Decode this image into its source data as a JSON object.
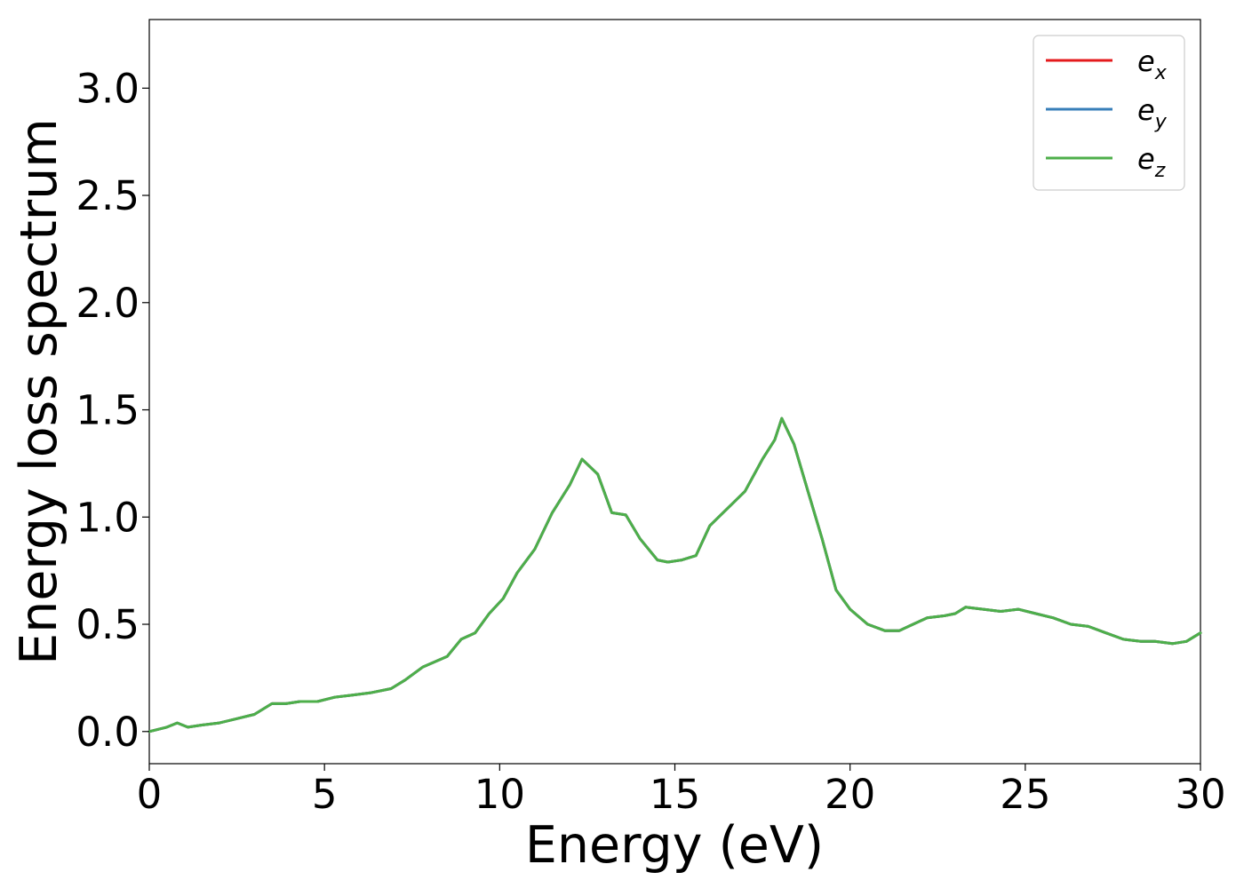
{
  "chart_data": {
    "type": "line",
    "title": "",
    "xlabel": "Energy (eV)",
    "ylabel": "Energy loss spectrum",
    "xlim": [
      0,
      30
    ],
    "ylim": [
      -0.15,
      3.32
    ],
    "xticks": [
      0,
      5,
      10,
      15,
      20,
      25,
      30
    ],
    "xtick_labels": [
      "0",
      "5",
      "10",
      "15",
      "20",
      "25",
      "30"
    ],
    "yticks": [
      0.0,
      0.5,
      1.0,
      1.5,
      2.0,
      2.5,
      3.0
    ],
    "ytick_labels": [
      "0.0",
      "0.5",
      "1.0",
      "1.5",
      "2.0",
      "2.5",
      "3.0"
    ],
    "grid": false,
    "legend": {
      "position": "top-right"
    },
    "x": [
      0,
      0.5,
      0.8,
      1.1,
      1.5,
      2.0,
      2.5,
      3.0,
      3.5,
      3.9,
      4.3,
      4.8,
      5.3,
      5.8,
      6.3,
      6.9,
      7.3,
      7.8,
      8.5,
      8.9,
      9.3,
      9.7,
      10.1,
      10.5,
      11.0,
      11.5,
      12.0,
      12.35,
      12.8,
      13.2,
      13.6,
      14.0,
      14.5,
      14.8,
      15.2,
      15.6,
      16.0,
      16.5,
      17.0,
      17.5,
      17.85,
      18.05,
      18.4,
      18.8,
      19.2,
      19.6,
      20.0,
      20.5,
      21.0,
      21.4,
      21.8,
      22.2,
      22.7,
      23.0,
      23.3,
      23.8,
      24.3,
      24.8,
      25.3,
      25.8,
      26.3,
      26.8,
      27.3,
      27.8,
      28.3,
      28.7,
      29.2,
      29.6,
      30.0
    ],
    "series": [
      {
        "name": "e_x",
        "label_base": "e",
        "label_sub": "x",
        "color": "#e41a1c",
        "values": [
          0.0,
          0.02,
          0.04,
          0.02,
          0.03,
          0.04,
          0.06,
          0.08,
          0.13,
          0.13,
          0.14,
          0.14,
          0.16,
          0.17,
          0.18,
          0.2,
          0.24,
          0.3,
          0.35,
          0.43,
          0.46,
          0.55,
          0.62,
          0.74,
          0.85,
          1.02,
          1.15,
          1.27,
          1.2,
          1.02,
          1.01,
          0.9,
          0.8,
          0.79,
          0.8,
          0.82,
          0.96,
          1.04,
          1.12,
          1.27,
          1.36,
          1.46,
          1.34,
          1.12,
          0.9,
          0.66,
          0.57,
          0.5,
          0.47,
          0.47,
          0.5,
          0.53,
          0.54,
          0.55,
          0.58,
          0.57,
          0.56,
          0.57,
          0.55,
          0.53,
          0.5,
          0.49,
          0.46,
          0.43,
          0.42,
          0.42,
          0.41,
          0.42,
          0.46
        ]
      },
      {
        "name": "e_y",
        "label_base": "e",
        "label_sub": "y",
        "color": "#377eb8",
        "values": [
          0.0,
          0.02,
          0.04,
          0.02,
          0.03,
          0.04,
          0.06,
          0.08,
          0.13,
          0.13,
          0.14,
          0.14,
          0.16,
          0.17,
          0.18,
          0.2,
          0.24,
          0.3,
          0.35,
          0.43,
          0.46,
          0.55,
          0.62,
          0.74,
          0.85,
          1.02,
          1.15,
          1.27,
          1.2,
          1.02,
          1.01,
          0.9,
          0.8,
          0.79,
          0.8,
          0.82,
          0.96,
          1.04,
          1.12,
          1.27,
          1.36,
          1.46,
          1.34,
          1.12,
          0.9,
          0.66,
          0.57,
          0.5,
          0.47,
          0.47,
          0.5,
          0.53,
          0.54,
          0.55,
          0.58,
          0.57,
          0.56,
          0.57,
          0.55,
          0.53,
          0.5,
          0.49,
          0.46,
          0.43,
          0.42,
          0.42,
          0.41,
          0.42,
          0.46
        ]
      },
      {
        "name": "e_z",
        "label_base": "e",
        "label_sub": "z",
        "color": "#4daf4a",
        "values": [
          0.0,
          0.02,
          0.04,
          0.02,
          0.03,
          0.04,
          0.06,
          0.08,
          0.13,
          0.13,
          0.14,
          0.14,
          0.16,
          0.17,
          0.18,
          0.2,
          0.24,
          0.3,
          0.35,
          0.43,
          0.46,
          0.55,
          0.62,
          0.74,
          0.85,
          1.02,
          1.15,
          1.27,
          1.2,
          1.02,
          1.01,
          0.9,
          0.8,
          0.79,
          0.8,
          0.82,
          0.96,
          1.04,
          1.12,
          1.27,
          1.36,
          1.46,
          1.34,
          1.12,
          0.9,
          0.66,
          0.57,
          0.5,
          0.47,
          0.47,
          0.5,
          0.53,
          0.54,
          0.55,
          0.58,
          0.57,
          0.56,
          0.57,
          0.55,
          0.53,
          0.5,
          0.49,
          0.46,
          0.43,
          0.42,
          0.42,
          0.41,
          0.42,
          0.46
        ]
      }
    ]
  }
}
